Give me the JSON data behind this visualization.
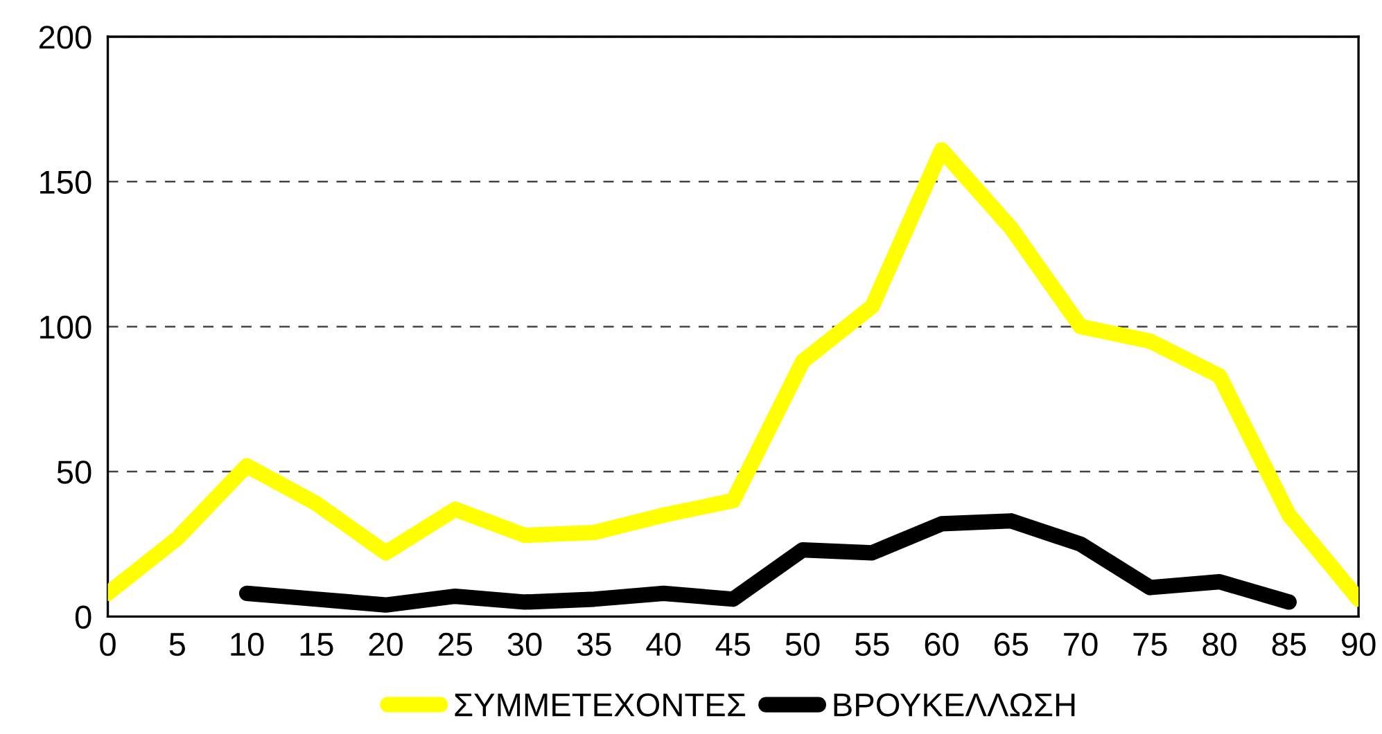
{
  "chart_data": {
    "type": "line",
    "categories": [
      "0",
      "5",
      "10",
      "15",
      "20",
      "25",
      "30",
      "35",
      "40",
      "45",
      "50",
      "55",
      "60",
      "65",
      "70",
      "75",
      "80",
      "85",
      "90"
    ],
    "series": [
      {
        "name": "ΣΥΜΜΕΤΕΧΟΝΤΕΣ",
        "color": "#ffff00",
        "values": [
          8,
          27,
          52,
          39,
          22,
          37,
          28,
          29,
          35,
          40,
          88,
          107,
          161,
          134,
          100,
          95,
          83,
          35,
          6
        ]
      },
      {
        "name": "ΒΡΟΥΚΕΛΛΩΣΗ",
        "color": "#000000",
        "values": [
          null,
          null,
          8,
          6,
          4,
          7,
          5,
          6,
          8,
          6,
          23,
          22,
          32,
          33,
          25,
          10,
          12,
          5,
          null
        ]
      }
    ],
    "ylim": [
      0,
      200
    ],
    "yticks": [
      0,
      50,
      100,
      150,
      200
    ],
    "grid": "y",
    "legend": "bottom",
    "marker": "none",
    "line_style": "solid"
  }
}
